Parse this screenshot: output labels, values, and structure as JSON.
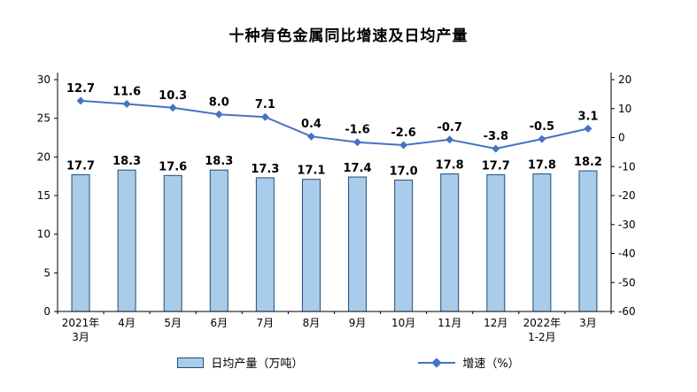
{
  "title": "十种有色金属同比增速及日均产量",
  "chart_data": {
    "type": "bar+line",
    "title": "十种有色金属同比增速及日均产量",
    "categories": [
      "2021年\n3月",
      "4月",
      "5月",
      "6月",
      "7月",
      "8月",
      "9月",
      "10月",
      "11月",
      "12月",
      "2022年\n1-2月",
      "3月"
    ],
    "series": [
      {
        "name": "日均产量（万吨）",
        "type": "bar",
        "axis": "left",
        "values": [
          17.7,
          18.3,
          17.6,
          18.3,
          17.3,
          17.1,
          17.4,
          17.0,
          17.8,
          17.7,
          17.8,
          18.2
        ],
        "fill_color": "#A9CCEA",
        "border_color": "#1F4E79"
      },
      {
        "name": "增速（%）",
        "type": "line",
        "axis": "right",
        "values": [
          12.7,
          11.6,
          10.3,
          8.0,
          7.1,
          0.4,
          -1.6,
          -2.6,
          -0.7,
          -3.8,
          -0.5,
          3.1
        ],
        "line_color": "#4472C4",
        "marker": "diamond"
      }
    ],
    "left_axis": {
      "min": 0,
      "max": 30,
      "ticks": [
        0,
        5,
        10,
        15,
        20,
        25,
        30
      ]
    },
    "right_axis": {
      "min": -60,
      "max": 20,
      "ticks": [
        20,
        10,
        0,
        -10,
        -20,
        -30,
        -40,
        -50,
        -60
      ]
    },
    "grid": false,
    "legend_position": "bottom",
    "data_labels": true,
    "label_color": "#000000",
    "axis_color": "#000000"
  }
}
